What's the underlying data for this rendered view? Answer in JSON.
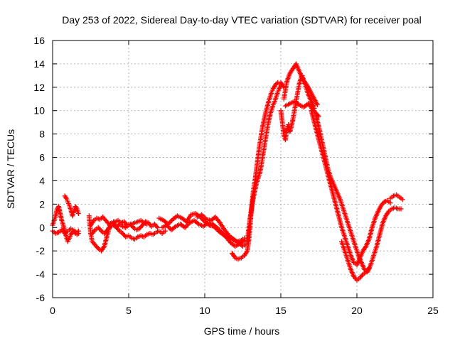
{
  "chart_data": {
    "type": "scatter",
    "title": "Day 253 of 2022, Sidereal Day-to-day VTEC variation (SDTVAR) for receiver poal",
    "xlabel": "GPS time / hours",
    "ylabel": "SDTVAR / TECUs",
    "xlim": [
      0,
      25
    ],
    "ylim": [
      -6,
      16
    ],
    "xticks": [
      0,
      5,
      10,
      15,
      20,
      25
    ],
    "yticks": [
      -6,
      -4,
      -2,
      0,
      2,
      4,
      6,
      8,
      10,
      12,
      14,
      16
    ],
    "grid": true,
    "marker": "+",
    "color": "#ff0000",
    "series": [
      {
        "name": "SDTVAR",
        "traces": [
          {
            "x": [
              0.0,
              0.1,
              0.2,
              0.3,
              0.4,
              0.5,
              0.6,
              0.7,
              0.8,
              0.9,
              1.0,
              1.1,
              1.2,
              1.3,
              1.4,
              1.5,
              1.6,
              1.7
            ],
            "y": [
              0.2,
              0.6,
              1.0,
              1.6,
              1.8,
              1.2,
              0.6,
              0.2,
              -0.3,
              -0.8,
              -1.2,
              -0.9,
              -0.6,
              -0.4,
              -0.3,
              -0.5,
              -0.6,
              -0.5
            ]
          },
          {
            "x": [
              0.0,
              0.2,
              0.4,
              0.6,
              0.8,
              1.0,
              1.2,
              1.4,
              1.6,
              1.7
            ],
            "y": [
              -0.3,
              -0.5,
              -0.4,
              -0.2,
              -0.5,
              -0.3,
              -0.1,
              -0.3,
              -0.4,
              -0.3
            ]
          },
          {
            "x": [
              0.8,
              0.9,
              1.0,
              1.1,
              1.2,
              1.3,
              1.4,
              1.5,
              1.6,
              1.7
            ],
            "y": [
              2.7,
              2.5,
              2.2,
              1.9,
              1.5,
              1.0,
              1.4,
              1.8,
              1.6,
              1.2
            ]
          },
          {
            "x": [
              2.4,
              2.5,
              2.6,
              2.8,
              3.0,
              3.2,
              3.4,
              3.6,
              3.8,
              4.0,
              4.2,
              4.4,
              4.6,
              4.8,
              5.0,
              5.2,
              5.4,
              5.6,
              5.8,
              6.0,
              6.2,
              6.4,
              6.6,
              6.8,
              7.0,
              7.2,
              7.4
            ],
            "y": [
              1.0,
              -0.5,
              -1.2,
              -1.5,
              -1.8,
              -2.0,
              -1.6,
              -0.6,
              0.3,
              0.5,
              0.0,
              -0.3,
              -0.5,
              -0.8,
              -0.7,
              -0.9,
              -1.0,
              -0.8,
              -0.7,
              -0.8,
              -0.6,
              -0.5,
              -0.6,
              -0.4,
              -0.3,
              -0.5,
              -0.3
            ]
          },
          {
            "x": [
              2.5,
              2.7,
              2.9,
              3.1,
              3.3,
              3.5,
              3.7,
              3.9,
              4.1,
              4.3,
              4.5,
              4.7,
              4.9,
              5.1,
              5.3,
              5.5,
              5.7,
              5.9,
              6.1,
              6.3,
              6.5,
              6.7,
              6.9
            ],
            "y": [
              0.2,
              0.6,
              0.8,
              0.7,
              0.9,
              0.6,
              0.3,
              0.4,
              0.5,
              0.6,
              0.4,
              0.5,
              0.2,
              0.3,
              0.0,
              -0.2,
              -0.1,
              0.2,
              0.5,
              0.4,
              0.1,
              0.3,
              0.0
            ]
          },
          {
            "x": [
              2.6,
              2.8,
              3.0,
              3.2,
              3.4,
              3.6,
              3.8,
              4.0,
              4.2,
              4.4,
              4.6,
              4.8,
              5.0,
              5.2,
              5.4,
              5.6,
              5.8,
              6.0,
              6.2
            ],
            "y": [
              -0.5,
              -0.2,
              0.0,
              -0.3,
              -0.5,
              -0.2,
              0.1,
              0.2,
              0.0,
              0.3,
              0.1,
              0.0,
              0.2,
              0.3,
              0.4,
              0.5,
              0.6,
              0.4,
              0.3
            ]
          },
          {
            "x": [
              7.0,
              7.3,
              7.6,
              7.9,
              8.2,
              8.5,
              8.8,
              9.1,
              9.4,
              9.7,
              10.0,
              10.3,
              10.6,
              10.9,
              11.2,
              11.5,
              11.8,
              12.1,
              12.4,
              12.6
            ],
            "y": [
              0.8,
              0.6,
              0.3,
              0.7,
              1.0,
              0.8,
              0.5,
              1.1,
              1.2,
              0.9,
              0.5,
              0.2,
              0.1,
              -0.3,
              -0.6,
              -0.9,
              -1.0,
              -1.2,
              -1.1,
              -0.9
            ]
          },
          {
            "x": [
              7.2,
              7.5,
              7.8,
              8.1,
              8.4,
              8.7,
              9.0,
              9.3,
              9.6,
              9.9,
              10.2,
              10.5,
              10.8,
              11.1,
              11.4,
              11.7,
              12.0,
              12.3,
              12.6
            ],
            "y": [
              0.0,
              0.2,
              -0.2,
              0.1,
              0.3,
              0.0,
              0.4,
              0.6,
              0.3,
              0.1,
              0.4,
              0.3,
              0.0,
              -0.4,
              -0.8,
              -1.3,
              -1.6,
              -1.4,
              -1.1
            ]
          },
          {
            "x": [
              9.5,
              9.8,
              10.1,
              10.4,
              10.7,
              11.0,
              11.3,
              11.6,
              11.9,
              12.2,
              12.5,
              12.7
            ],
            "y": [
              0.9,
              1.1,
              0.7,
              0.6,
              0.9,
              0.4,
              -0.2,
              -0.7,
              -1.0,
              -1.3,
              -1.6,
              -1.4
            ]
          },
          {
            "x": [
              11.8,
              12.0,
              12.2,
              12.4,
              12.6,
              12.8,
              12.9,
              13.0,
              13.1,
              13.2,
              13.3,
              13.4,
              13.5,
              13.6,
              13.7,
              13.8,
              13.9,
              14.0,
              14.1,
              14.2,
              14.3,
              14.4,
              14.5,
              14.6,
              14.7,
              14.8,
              14.9,
              15.0,
              15.2
            ],
            "y": [
              -2.2,
              -2.6,
              -2.7,
              -2.6,
              -2.4,
              -2.0,
              -1.0,
              0.5,
              2.0,
              3.2,
              4.0,
              5.0,
              6.0,
              7.0,
              7.8,
              8.6,
              9.2,
              9.8,
              10.3,
              10.8,
              11.2,
              11.6,
              11.9,
              12.1,
              12.3,
              12.4,
              12.3,
              12.4,
              12.0
            ]
          },
          {
            "x": [
              12.8,
              12.9,
              13.0,
              13.1,
              13.2,
              13.3,
              13.4,
              13.5,
              13.6,
              13.7,
              13.8,
              13.9,
              14.0,
              14.1,
              14.2,
              14.3,
              14.4,
              14.5,
              14.6,
              14.7,
              14.8,
              14.9,
              15.0
            ],
            "y": [
              -1.2,
              0.0,
              1.0,
              1.8,
              2.6,
              3.2,
              3.8,
              4.2,
              4.6,
              5.2,
              6.0,
              6.8,
              7.6,
              8.4,
              9.1,
              9.7,
              10.1,
              10.5,
              10.8,
              11.2,
              11.6,
              11.9,
              12.1
            ]
          },
          {
            "x": [
              15.0,
              15.1,
              15.2,
              15.3,
              15.4,
              15.5,
              15.6,
              15.7,
              15.8,
              15.9,
              16.0,
              16.1,
              16.2,
              16.3,
              16.4,
              16.5,
              16.6,
              16.7,
              16.8,
              17.0,
              17.2
            ],
            "y": [
              10.0,
              9.0,
              7.9,
              7.5,
              8.5,
              8.8,
              8.2,
              8.7,
              9.3,
              10.0,
              10.8,
              11.5,
              12.2,
              12.7,
              13.0,
              12.6,
              12.2,
              11.8,
              11.4,
              10.8,
              10.2
            ]
          },
          {
            "x": [
              15.2,
              15.4,
              15.6,
              15.8,
              16.0,
              16.2,
              16.4,
              16.6,
              16.8,
              17.0,
              17.2,
              17.4
            ],
            "y": [
              11.0,
              12.5,
              13.2,
              13.6,
              14.0,
              13.4,
              12.8,
              12.4,
              12.0,
              11.5,
              11.0,
              10.5
            ]
          },
          {
            "x": [
              15.3,
              15.6,
              15.9,
              16.2,
              16.5,
              16.8,
              17.1,
              17.3,
              17.5
            ],
            "y": [
              10.4,
              10.6,
              10.8,
              10.5,
              10.3,
              10.6,
              10.1,
              9.8,
              9.5
            ]
          },
          {
            "x": [
              17.0,
              17.2,
              17.4,
              17.6,
              17.8,
              18.0,
              18.2,
              18.4,
              18.6,
              18.8,
              19.0,
              19.2,
              19.4,
              19.6,
              19.8,
              20.0,
              20.2,
              20.4,
              20.6,
              20.8,
              21.0,
              21.2,
              21.4,
              21.6,
              21.8,
              22.0,
              22.2
            ],
            "y": [
              10.0,
              9.0,
              8.0,
              7.0,
              6.0,
              5.0,
              4.0,
              3.0,
              2.0,
              1.0,
              0.0,
              -0.8,
              -1.6,
              -2.4,
              -3.0,
              -3.2,
              -2.6,
              -2.0,
              -1.6,
              -1.0,
              0.0,
              0.8,
              1.4,
              1.9,
              2.2,
              2.3,
              2.1
            ]
          },
          {
            "x": [
              17.3,
              17.5,
              17.7,
              17.9,
              18.1,
              18.3,
              18.5,
              18.7,
              18.9,
              19.1,
              19.3,
              19.5,
              19.7,
              19.9,
              20.1,
              20.3,
              20.5,
              20.7,
              20.9,
              21.1,
              21.3,
              21.5,
              21.7,
              21.9,
              22.1,
              22.3,
              22.5,
              22.7,
              22.9
            ],
            "y": [
              9.6,
              8.6,
              7.4,
              6.2,
              5.0,
              4.2,
              3.6,
              3.0,
              2.4,
              1.6,
              0.8,
              0.0,
              -0.8,
              -1.6,
              -2.4,
              -3.0,
              -3.6,
              -3.8,
              -3.2,
              -2.4,
              -1.6,
              -0.6,
              0.4,
              1.0,
              1.4,
              1.6,
              1.7,
              1.6,
              1.6
            ]
          },
          {
            "x": [
              19.0,
              19.2,
              19.4,
              19.6,
              19.8,
              20.0,
              20.2,
              20.4,
              20.6,
              20.8
            ],
            "y": [
              -1.2,
              -2.0,
              -2.8,
              -3.6,
              -4.2,
              -4.5,
              -4.3,
              -4.0,
              -3.8,
              -3.5
            ]
          },
          {
            "x": [
              22.2,
              22.4,
              22.6,
              22.8,
              23.0
            ],
            "y": [
              2.5,
              2.7,
              2.8,
              2.6,
              2.4
            ]
          }
        ]
      }
    ]
  }
}
